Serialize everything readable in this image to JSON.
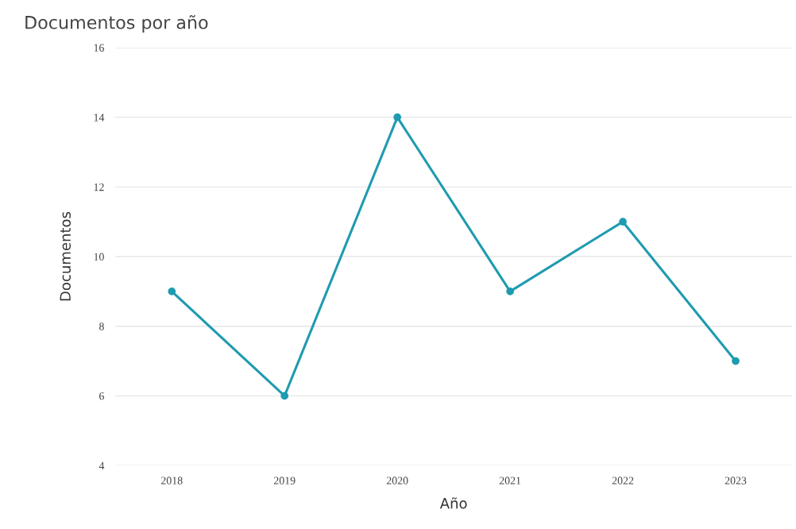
{
  "chart_data": {
    "type": "line",
    "title": "Documentos por año",
    "xlabel": "Año",
    "ylabel": "Documentos",
    "categories": [
      "2018",
      "2019",
      "2020",
      "2021",
      "2022",
      "2023"
    ],
    "series": [
      {
        "color": "#1e9bb0",
        "values": [
          9,
          6,
          14,
          9,
          11,
          7
        ]
      }
    ],
    "ylim": [
      4,
      16
    ],
    "yticks": [
      4,
      6,
      8,
      10,
      12,
      14,
      16
    ],
    "grid": "y",
    "marker": "circle",
    "line_style": "solid",
    "legend": false
  }
}
